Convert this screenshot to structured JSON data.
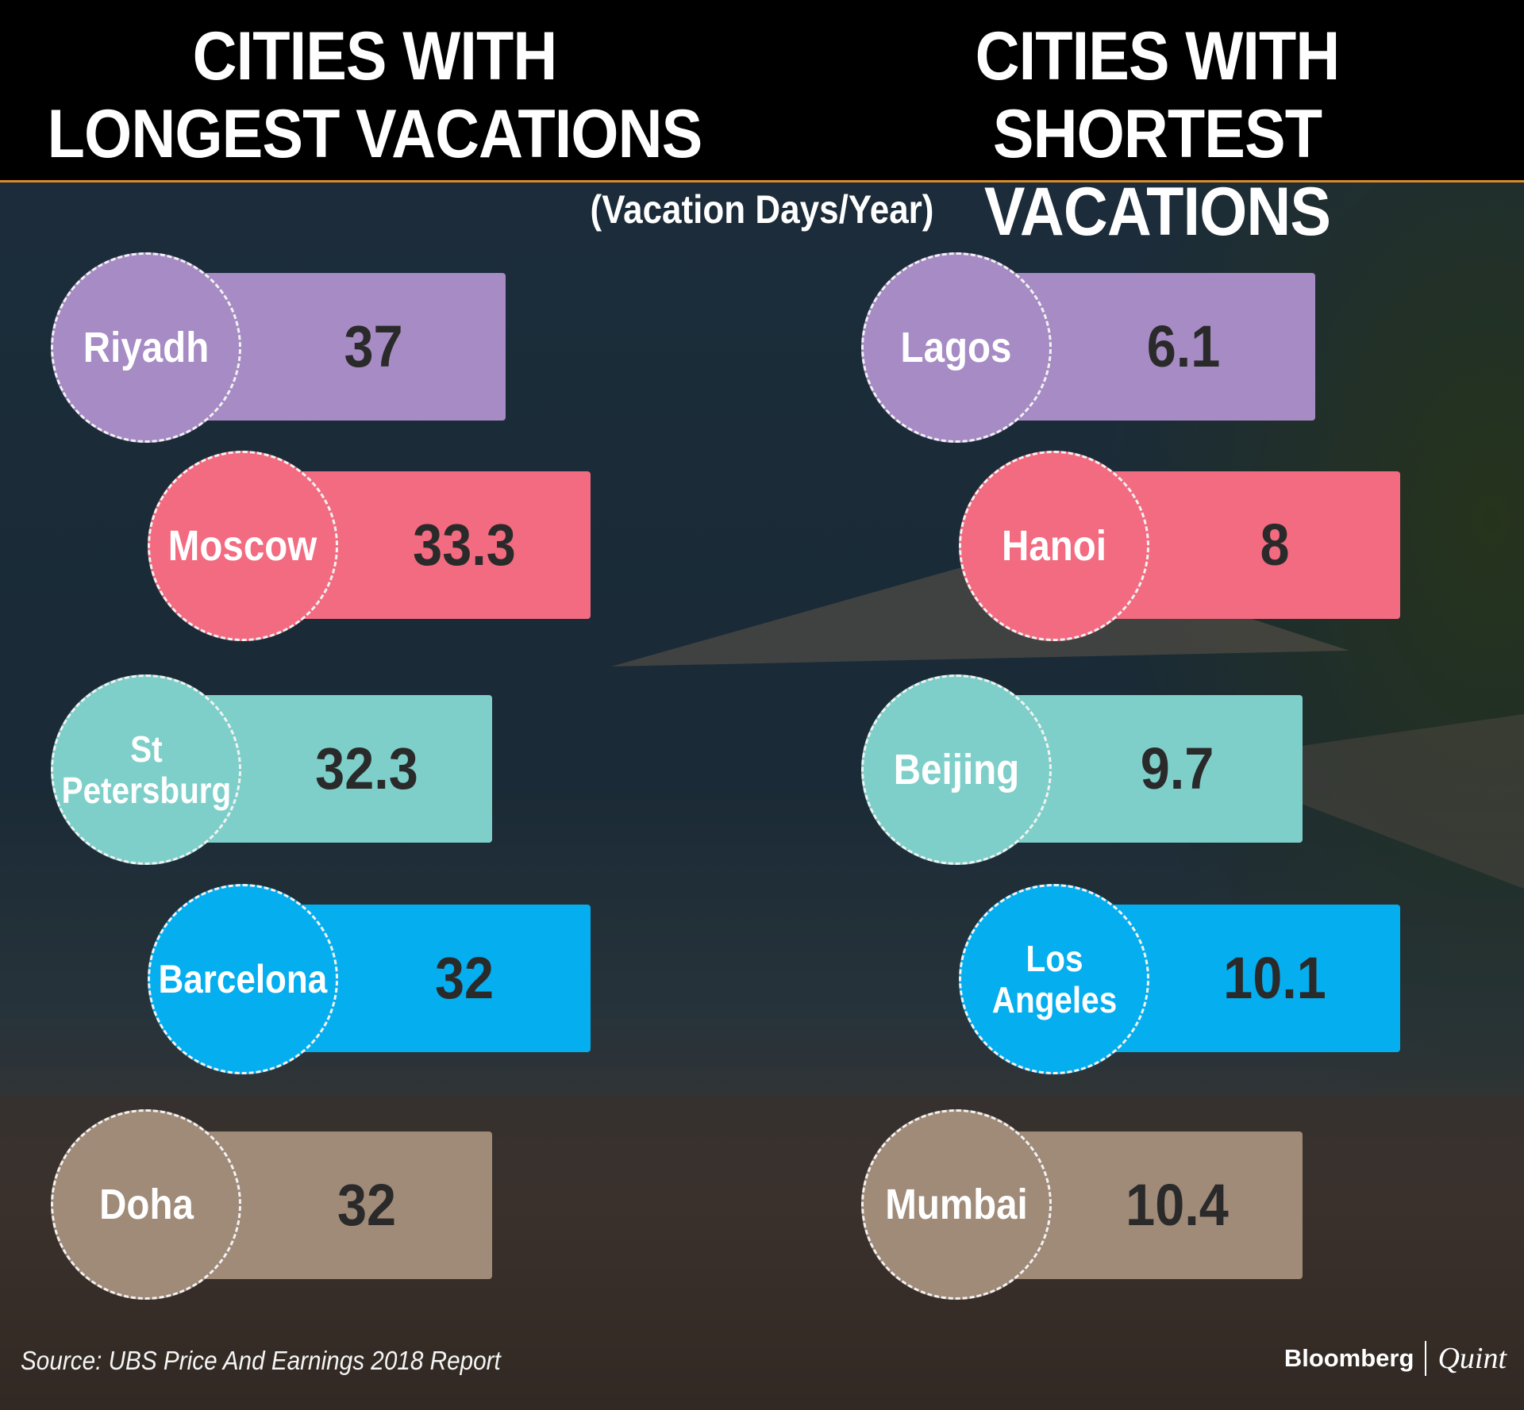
{
  "header": {
    "left_title": [
      "CITIES WITH",
      "LONGEST VACATIONS"
    ],
    "right_title": [
      "CITIES WITH",
      "SHORTEST VACATIONS"
    ]
  },
  "subtitle": "(Vacation Days/Year)",
  "colors": [
    "#a68bc4",
    "#f26b80",
    "#7ecfc9",
    "#05aeee",
    "#a08a78"
  ],
  "chart_data": [
    {
      "type": "bar",
      "title": "CITIES WITH LONGEST VACATIONS",
      "ylabel": "(Vacation Days/Year)",
      "categories": [
        "Riyadh",
        "Moscow",
        "St\nPetersburg",
        "Barcelona",
        "Doha"
      ],
      "values": [
        37,
        33.3,
        32.3,
        32,
        32
      ],
      "value_labels": [
        "37",
        "33.3",
        "32.3",
        "32",
        "32"
      ]
    },
    {
      "type": "bar",
      "title": "CITIES WITH SHORTEST VACATIONS",
      "ylabel": "(Vacation Days/Year)",
      "categories": [
        "Lagos",
        "Hanoi",
        "Beijing",
        "Los\nAngeles",
        "Mumbai"
      ],
      "values": [
        6.1,
        8,
        9.7,
        10.1,
        10.4
      ],
      "value_labels": [
        "6.1",
        "8",
        "9.7",
        "10.1",
        "10.4"
      ]
    }
  ],
  "footer": {
    "source": "Source: UBS Price And Earnings 2018 Report",
    "brand_1": "Bloomberg",
    "brand_2": "Quint"
  }
}
